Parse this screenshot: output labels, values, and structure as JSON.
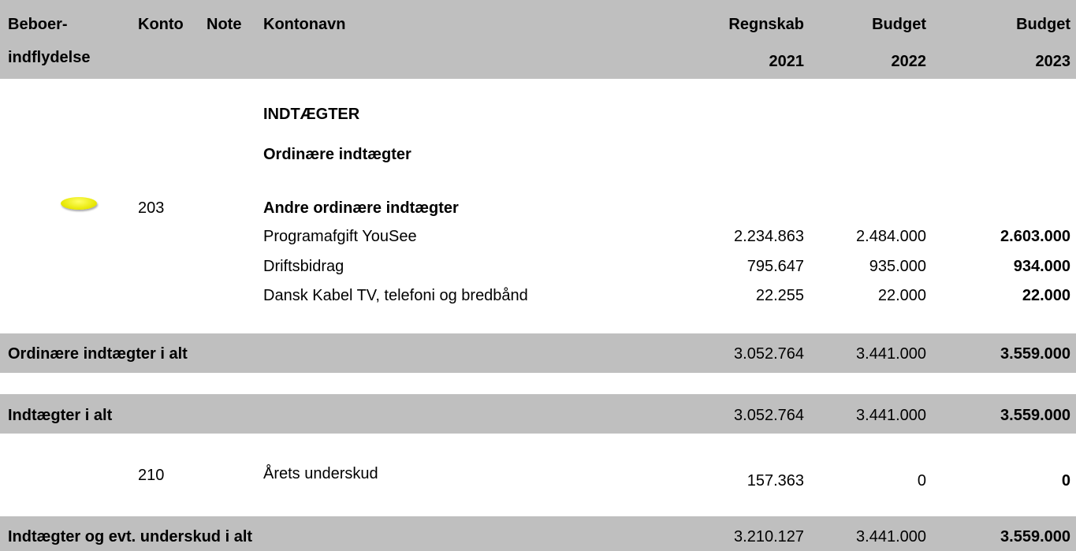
{
  "header": {
    "resident_influence": [
      "Beboer-",
      "indflydelse"
    ],
    "account": "Konto",
    "note": "Note",
    "account_name": "Kontonavn",
    "columns": [
      [
        "Regnskab",
        "2021"
      ],
      [
        "Budget",
        "2022"
      ],
      [
        "Budget",
        "2023"
      ]
    ]
  },
  "headings": [
    "INDTÆGTER",
    "Ordinære indtægter"
  ],
  "group": {
    "account": "203",
    "name": "Andre ordinære indtægter",
    "rows": [
      {
        "name": "Programafgift YouSee",
        "values": [
          "2.234.863",
          "2.484.000",
          "2.603.000"
        ]
      },
      {
        "name": "Driftsbidrag",
        "values": [
          "795.647",
          "935.000",
          "934.000"
        ]
      },
      {
        "name": "Dansk Kabel TV, telefoni og bredbånd",
        "values": [
          "22.255",
          "22.000",
          "22.000"
        ]
      }
    ]
  },
  "subtotal": {
    "name": "Ordinære indtægter i alt",
    "values": [
      "3.052.764",
      "3.441.000",
      "3.559.000"
    ]
  },
  "total": {
    "name": "Indtægter i alt",
    "values": [
      "3.052.764",
      "3.441.000",
      "3.559.000"
    ]
  },
  "deficit": {
    "account": "210",
    "name": "Årets underskud",
    "values": [
      "157.363",
      "0",
      "0"
    ]
  },
  "grand_total": {
    "name": "Indtægter og evt. underskud i alt",
    "values": [
      "3.210.127",
      "3.441.000",
      "3.559.000"
    ]
  }
}
